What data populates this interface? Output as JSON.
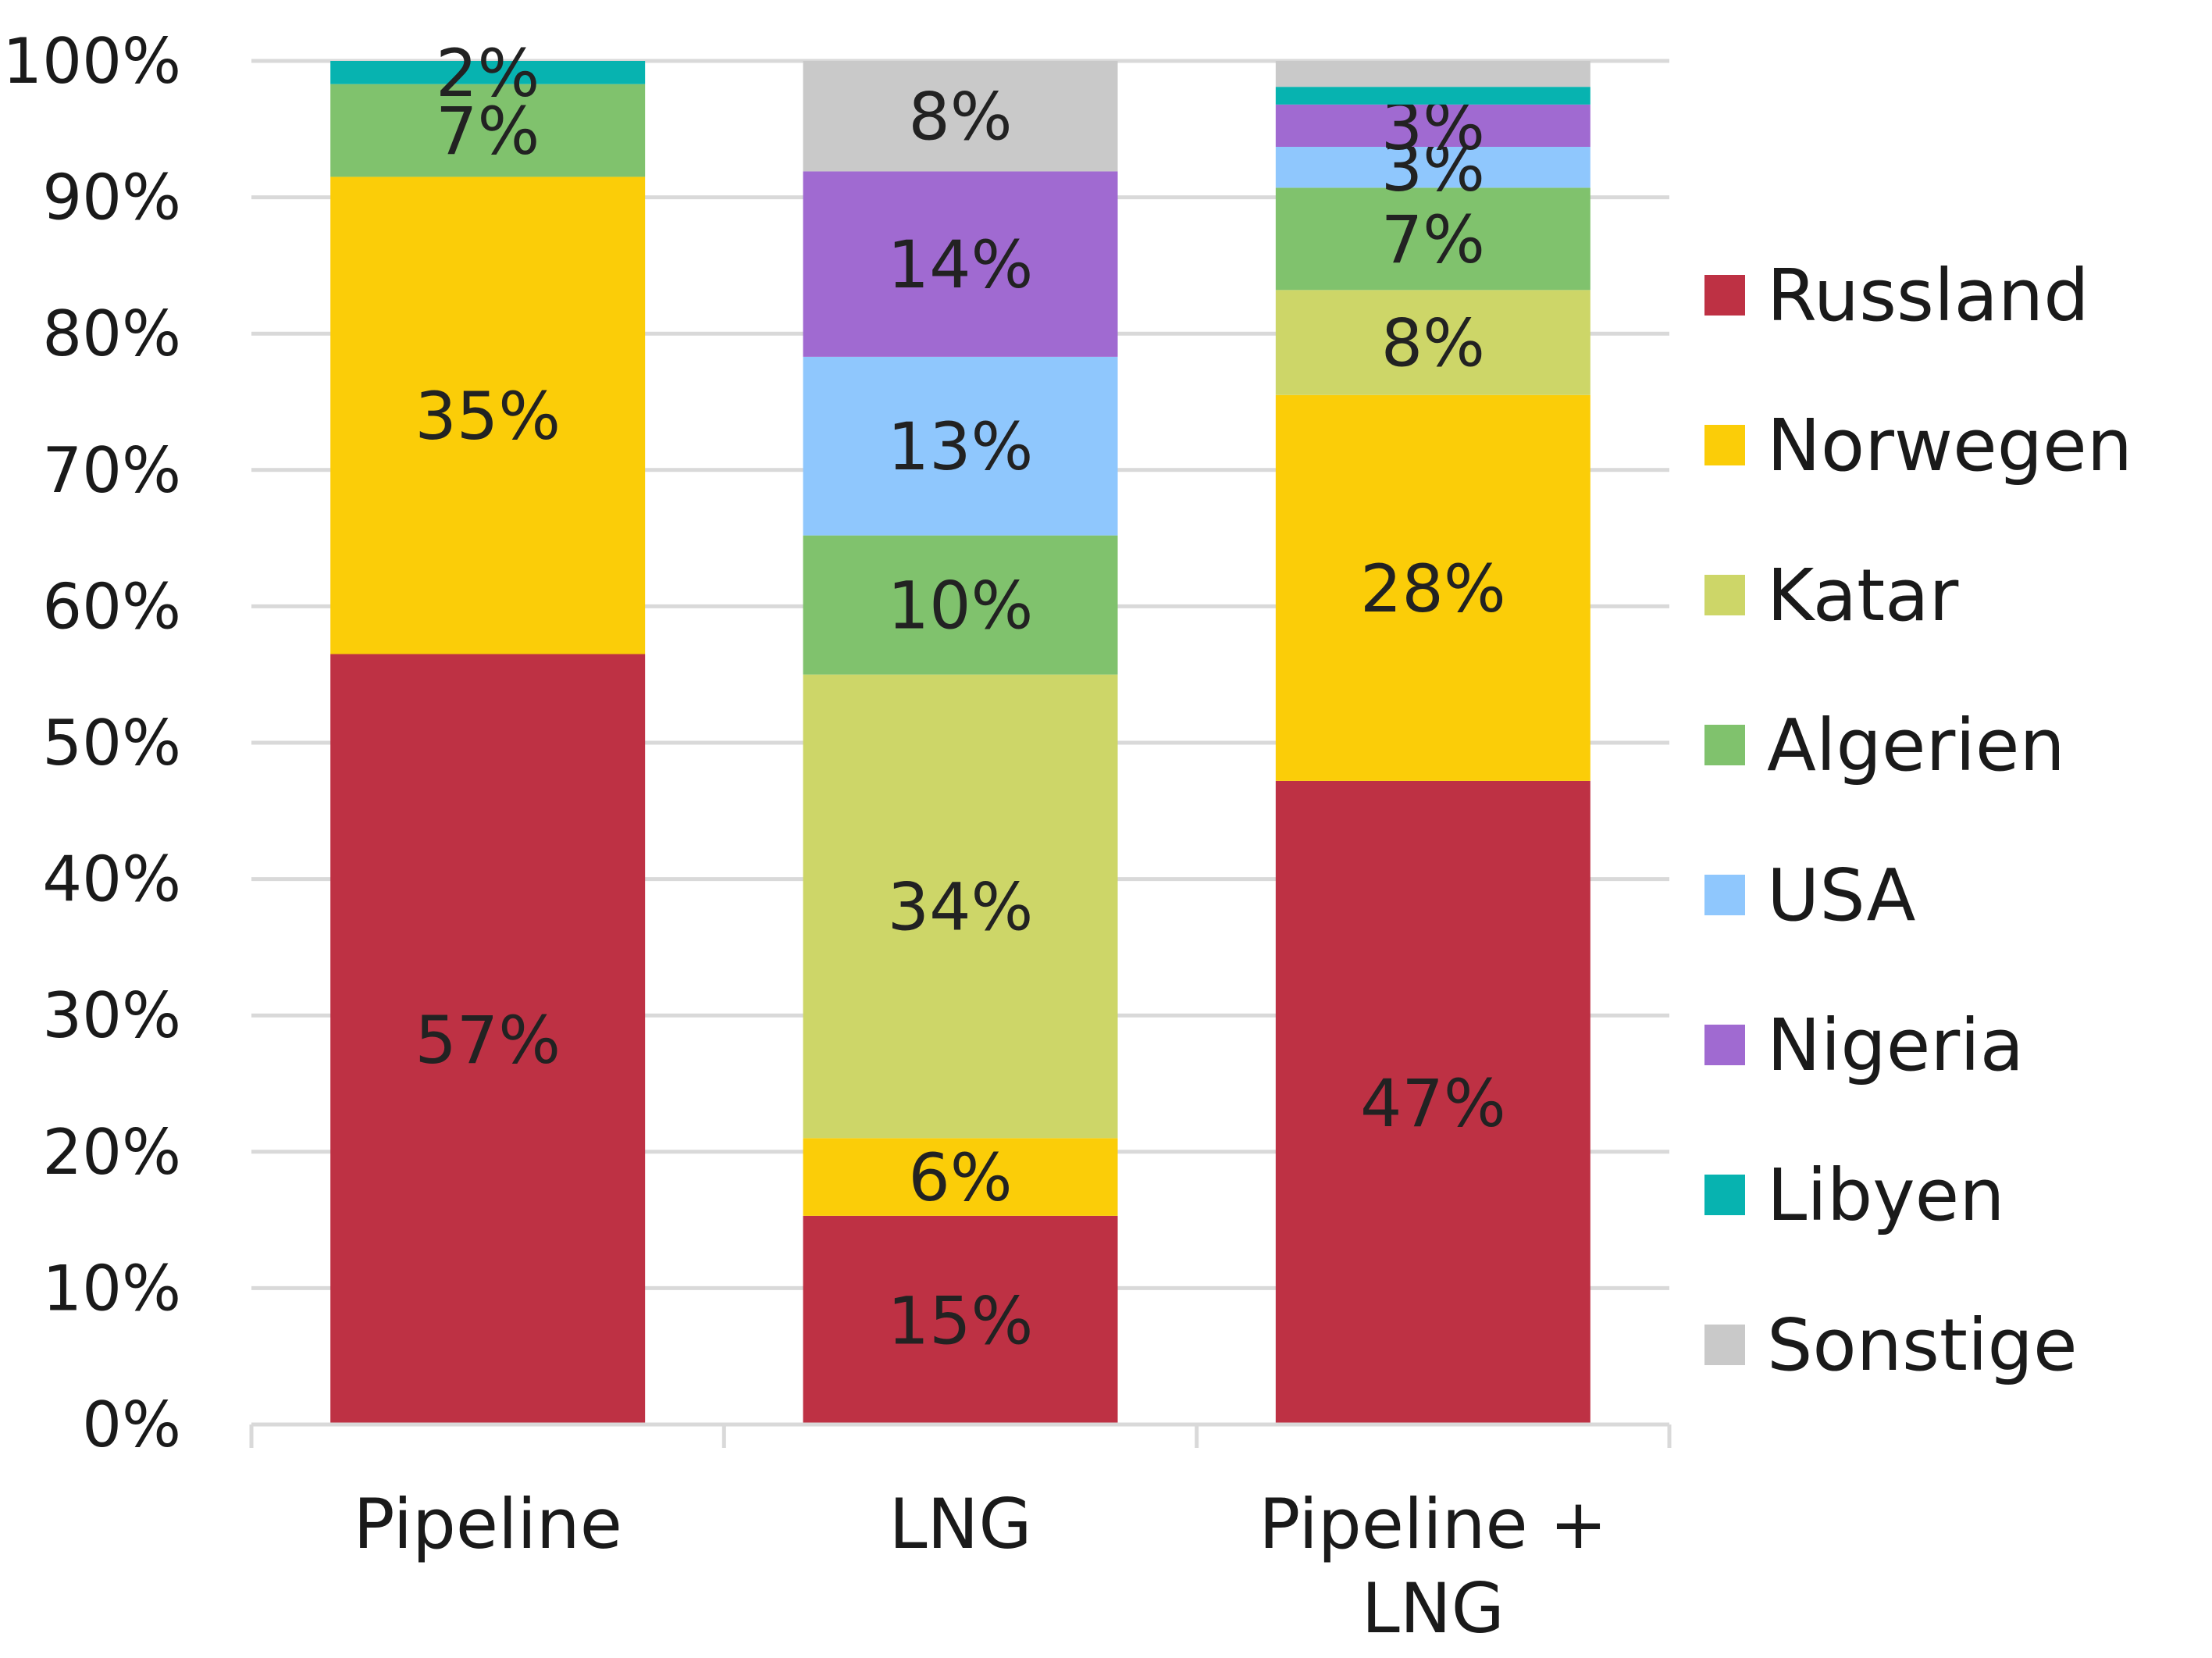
{
  "chart_data": {
    "type": "bar",
    "stacked": true,
    "categories": [
      [
        "Pipeline"
      ],
      [
        "LNG"
      ],
      [
        "Pipeline +",
        "LNG"
      ]
    ],
    "ylim": [
      0,
      100
    ],
    "yticks": [
      "0%",
      "10%",
      "20%",
      "30%",
      "40%",
      "50%",
      "60%",
      "70%",
      "80%",
      "90%",
      "100%"
    ],
    "grid": true,
    "legend_position": "right",
    "series": [
      {
        "name": "Russland",
        "color": "#be3144",
        "values": [
          56.5,
          15.3,
          47.2
        ],
        "labels": [
          "57%",
          "15%",
          "47%"
        ]
      },
      {
        "name": "Norwegen",
        "color": "#fbcd08",
        "values": [
          35.0,
          5.7,
          28.3
        ],
        "labels": [
          "35%",
          "6%",
          "28%"
        ]
      },
      {
        "name": "Katar",
        "color": "#cdd668",
        "values": [
          0,
          34.0,
          7.7
        ],
        "labels": [
          "",
          "34%",
          "8%"
        ]
      },
      {
        "name": "Algerien",
        "color": "#80c26d",
        "values": [
          6.8,
          10.2,
          7.5
        ],
        "labels": [
          "7%",
          "10%",
          "7%"
        ]
      },
      {
        "name": "USA",
        "color": "#8fc7fd",
        "values": [
          0,
          13.1,
          3.0
        ],
        "labels": [
          "",
          "13%",
          "3%"
        ]
      },
      {
        "name": "Nigeria",
        "color": "#a06ad1",
        "values": [
          0,
          13.6,
          3.1
        ],
        "labels": [
          "",
          "14%",
          "3%"
        ]
      },
      {
        "name": "Libyen",
        "color": "#07b3b0",
        "values": [
          1.7,
          0,
          1.3
        ],
        "labels": [
          "2%",
          "",
          ""
        ]
      },
      {
        "name": "Sonstige",
        "color": "#c9c9c9",
        "values": [
          0,
          8.1,
          1.9
        ],
        "labels": [
          "",
          "8%",
          ""
        ]
      }
    ]
  }
}
